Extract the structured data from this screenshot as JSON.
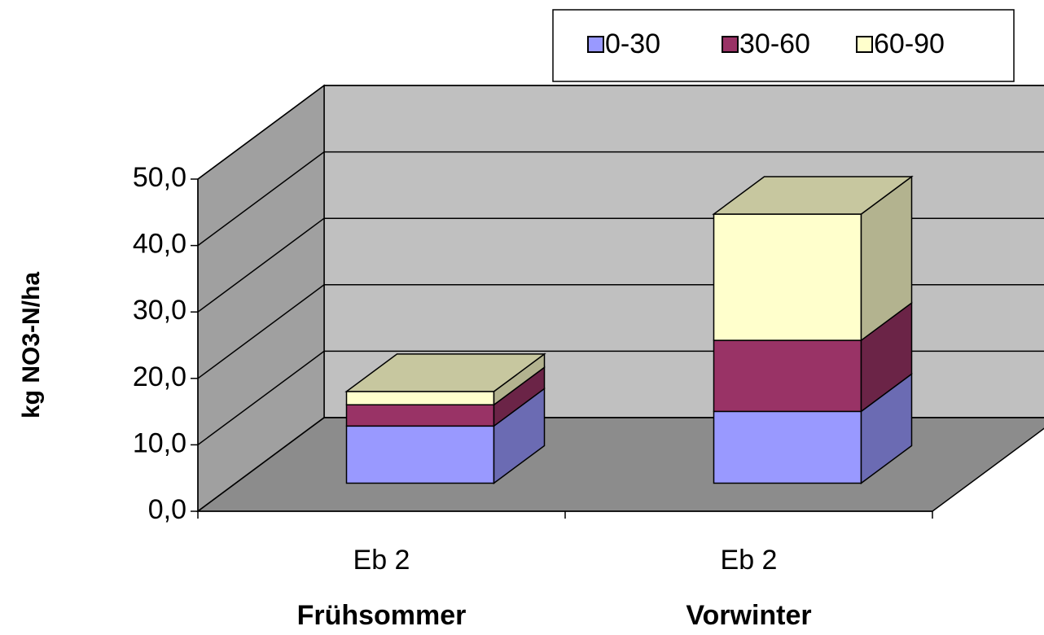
{
  "chart_data": {
    "type": "bar3d_stacked",
    "y_label": "kg NO3-N/ha",
    "categories": [
      "Eb 2",
      "Eb 2"
    ],
    "group_labels": [
      "Frühsommer",
      "Vorwinter"
    ],
    "series": [
      {
        "name": "0-30",
        "color": "#9999ff",
        "values": [
          8.6,
          10.8
        ]
      },
      {
        "name": "30-60",
        "color": "#993366",
        "values": [
          3.2,
          10.7
        ]
      },
      {
        "name": "60-90",
        "color": "#ffffcc",
        "values": [
          2.0,
          19.0
        ]
      }
    ],
    "ylim": [
      0,
      50
    ],
    "yticks": [
      {
        "value": 0,
        "label": "0,0"
      },
      {
        "value": 10,
        "label": "10,0"
      },
      {
        "value": 20,
        "label": "20,0"
      },
      {
        "value": 30,
        "label": "30,0"
      },
      {
        "value": 40,
        "label": "40,0"
      },
      {
        "value": 50,
        "label": "50,0"
      }
    ],
    "grid": true,
    "legend": "top-right"
  }
}
